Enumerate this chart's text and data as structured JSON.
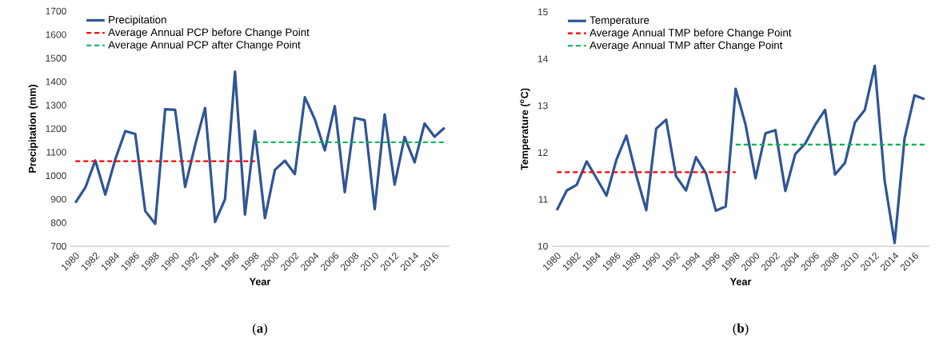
{
  "chart_data": [
    {
      "type": "line",
      "categories": [
        "1980",
        null,
        "1982",
        null,
        "1984",
        null,
        "1986",
        null,
        "1988",
        null,
        "1990",
        null,
        "1992",
        null,
        "1994",
        null,
        "1996",
        null,
        "1998",
        null,
        "2000",
        null,
        "2002",
        null,
        "2004",
        null,
        "2006",
        null,
        "2008",
        null,
        "2010",
        null,
        "2012",
        null,
        "2014",
        null,
        "2016",
        null
      ],
      "xlabel": "Year",
      "ylabel": "Precipitation (mm)",
      "ylim": [
        700,
        1700
      ],
      "yticks": [
        700,
        800,
        900,
        1000,
        1100,
        1200,
        1300,
        1400,
        1500,
        1600,
        1700
      ],
      "legend": "top left",
      "annotations": [
        "(**a**)"
      ],
      "series": [
        {
          "name": "Precipitation",
          "color": "#2e5597",
          "line_style": "solid",
          "values": [
            885,
            950,
            1065,
            920,
            1070,
            1190,
            1178,
            850,
            795,
            1283,
            1280,
            952,
            1130,
            1288,
            803,
            900,
            1443,
            835,
            1190,
            820,
            1025,
            1064,
            1007,
            1334,
            1240,
            1108,
            1296,
            930,
            1246,
            1236,
            858,
            1261,
            962,
            1165,
            1057,
            1222,
            1166,
            1204
          ]
        },
        {
          "name": "Average Annual PCP before Change Point",
          "color": "#ff0000",
          "line_style": "dashed",
          "values": [
            1062,
            1062,
            1062,
            1062,
            1062,
            1062,
            1062,
            1062,
            1062,
            1062,
            1062,
            1062,
            1062,
            1062,
            1062,
            1062,
            1062,
            1062,
            1062,
            null,
            null,
            null,
            null,
            null,
            null,
            null,
            null,
            null,
            null,
            null,
            null,
            null,
            null,
            null,
            null,
            null,
            null,
            null
          ]
        },
        {
          "name": "Average Annual PCP after Change Point",
          "color": "#00b050",
          "line_style": "dashed",
          "values": [
            null,
            null,
            null,
            null,
            null,
            null,
            null,
            null,
            null,
            null,
            null,
            null,
            null,
            null,
            null,
            null,
            null,
            null,
            1142,
            1142,
            1142,
            1142,
            1142,
            1142,
            1142,
            1142,
            1142,
            1142,
            1142,
            1142,
            1142,
            1142,
            1142,
            1142,
            1142,
            1142,
            1142,
            1142
          ]
        }
      ]
    },
    {
      "type": "line",
      "categories": [
        "1980",
        null,
        "1982",
        null,
        "1984",
        null,
        "1986",
        null,
        "1988",
        null,
        "1990",
        null,
        "1992",
        null,
        "1994",
        null,
        "1996",
        null,
        "1998",
        null,
        "2000",
        null,
        "2002",
        null,
        "2004",
        null,
        "2006",
        null,
        "2008",
        null,
        "2010",
        null,
        "2012",
        null,
        "2014",
        null,
        "2016",
        null
      ],
      "xlabel": "Year",
      "ylabel": "Temperature ($^{o}$C)",
      "ylim": [
        10,
        15
      ],
      "yticks": [
        10,
        11,
        12,
        13,
        14,
        15
      ],
      "legend": "top left",
      "annotations": [
        "(**b**)"
      ],
      "series": [
        {
          "name": "Temperature",
          "color": "#2e5597",
          "line_style": "solid",
          "values": [
            10.77,
            11.19,
            11.31,
            11.81,
            11.45,
            11.08,
            11.85,
            12.36,
            11.51,
            10.77,
            12.51,
            12.7,
            11.49,
            11.19,
            11.9,
            11.56,
            10.76,
            10.85,
            13.36,
            12.59,
            11.45,
            12.41,
            12.48,
            11.18,
            11.97,
            12.19,
            12.59,
            12.91,
            11.53,
            11.78,
            12.64,
            12.91,
            13.85,
            11.39,
            10.07,
            12.3,
            13.22,
            13.14
          ]
        },
        {
          "name": "Average Annual TMP before Change Point",
          "color": "#ff0000",
          "line_style": "dashed",
          "values": [
            11.58,
            11.58,
            11.58,
            11.58,
            11.58,
            11.58,
            11.58,
            11.58,
            11.58,
            11.58,
            11.58,
            11.58,
            11.58,
            11.58,
            11.58,
            11.58,
            11.58,
            11.58,
            11.58,
            null,
            null,
            null,
            null,
            null,
            null,
            null,
            null,
            null,
            null,
            null,
            null,
            null,
            null,
            null,
            null,
            null,
            null,
            null
          ]
        },
        {
          "name": "Average Annual TMP after Change Point",
          "color": "#00b050",
          "line_style": "dashed",
          "values": [
            null,
            null,
            null,
            null,
            null,
            null,
            null,
            null,
            null,
            null,
            null,
            null,
            null,
            null,
            null,
            null,
            null,
            null,
            12.17,
            12.17,
            12.17,
            12.17,
            12.17,
            12.17,
            12.17,
            12.17,
            12.17,
            12.17,
            12.17,
            12.17,
            12.17,
            12.17,
            12.17,
            12.17,
            12.17,
            12.17,
            12.17,
            12.17
          ]
        }
      ]
    }
  ]
}
